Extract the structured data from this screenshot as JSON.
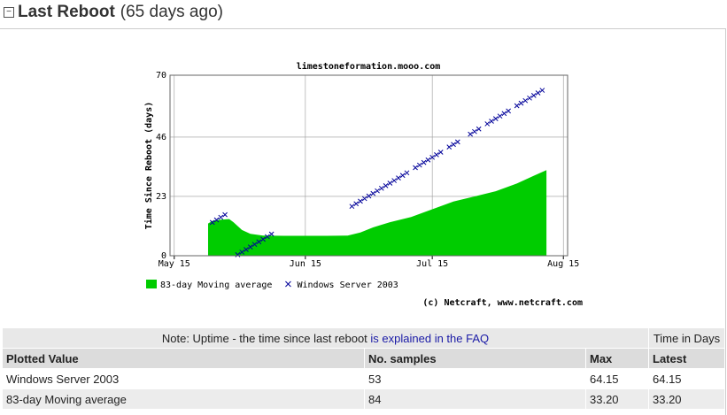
{
  "header": {
    "title": "Last Reboot",
    "subtitle": "(65 days ago)"
  },
  "chart_data": {
    "type": "uptime",
    "title": "limestoneformation.mooo.com",
    "y_label": "Time Since Reboot (days)",
    "credit": "(c) Netcraft, www.netcraft.com",
    "xlim": [
      "May 14",
      "Aug 16"
    ],
    "xticks": [
      "May 15",
      "Jun 15",
      "Jul 15",
      "Aug 15"
    ],
    "ylim": [
      0,
      70
    ],
    "yticks": [
      0,
      23,
      46,
      70
    ],
    "grid": true,
    "series": [
      {
        "name": "83-day Moving average",
        "color": "#00cc00",
        "style": "area",
        "x": [
          "May 23",
          "May 24",
          "May 26",
          "May 28",
          "May 29",
          "May 31",
          "Jun 2",
          "Jun 5",
          "Jun 10",
          "Jun 20",
          "Jun 25",
          "Jun 28",
          "Jul 1",
          "Jul 5",
          "Jul 10",
          "Jul 15",
          "Jul 20",
          "Jul 25",
          "Jul 30",
          "Aug 4",
          "Aug 8",
          "Aug 11"
        ],
        "values": [
          12.5,
          13.5,
          14,
          14.2,
          13,
          10,
          8.5,
          7.8,
          7.7,
          7.7,
          7.8,
          9,
          11,
          13,
          15,
          18,
          21,
          23,
          25,
          28,
          31,
          33.2
        ]
      },
      {
        "name": "Windows Server 2003",
        "color": "#000099",
        "style": "cross",
        "x": [
          "May 24",
          "May 25",
          "May 26",
          "May 27",
          "May 30",
          "May 31",
          "Jun 1",
          "Jun 2",
          "Jun 3",
          "Jun 4",
          "Jun 5",
          "Jun 6",
          "Jun 7",
          "Jun 26",
          "Jun 27",
          "Jun 28",
          "Jun 29",
          "Jun 30",
          "Jul 1",
          "Jul 2",
          "Jul 3",
          "Jul 4",
          "Jul 5",
          "Jul 6",
          "Jul 7",
          "Jul 8",
          "Jul 9",
          "Jul 11",
          "Jul 12",
          "Jul 13",
          "Jul 14",
          "Jul 15",
          "Jul 16",
          "Jul 17",
          "Jul 19",
          "Jul 20",
          "Jul 21",
          "Jul 24",
          "Jul 25",
          "Jul 26",
          "Jul 28",
          "Jul 29",
          "Jul 30",
          "Jul 31",
          "Aug 1",
          "Aug 2",
          "Aug 4",
          "Aug 5",
          "Aug 6",
          "Aug 7",
          "Aug 8",
          "Aug 9",
          "Aug 10"
        ],
        "values": [
          12.9,
          13.9,
          14.9,
          15.9,
          0.4,
          1.4,
          2.4,
          3.4,
          4.4,
          5.4,
          6.4,
          7.4,
          8.4,
          19.15,
          20.15,
          21.15,
          22.15,
          23.15,
          24.15,
          25.15,
          26.15,
          27.15,
          28.15,
          29.15,
          30.15,
          31.15,
          32.15,
          34.15,
          35.15,
          36.15,
          37.15,
          38.15,
          39.15,
          40.15,
          42.15,
          43.15,
          44.15,
          47.15,
          48.15,
          49.15,
          51.15,
          52.15,
          53.15,
          54.15,
          55.15,
          56.15,
          58.15,
          59.15,
          60.15,
          61.15,
          62.15,
          63.15,
          64.15
        ]
      }
    ]
  },
  "table": {
    "note": "Note: Uptime - the time since last reboot",
    "note_link": "is explained in the FAQ",
    "units": "Time in Days",
    "columns": [
      "Plotted Value",
      "No. samples",
      "Max",
      "Latest"
    ],
    "rows": [
      [
        "Windows Server 2003",
        "53",
        "64.15",
        "64.15"
      ],
      [
        "83-day Moving average",
        "84",
        "33.20",
        "33.20"
      ]
    ]
  }
}
